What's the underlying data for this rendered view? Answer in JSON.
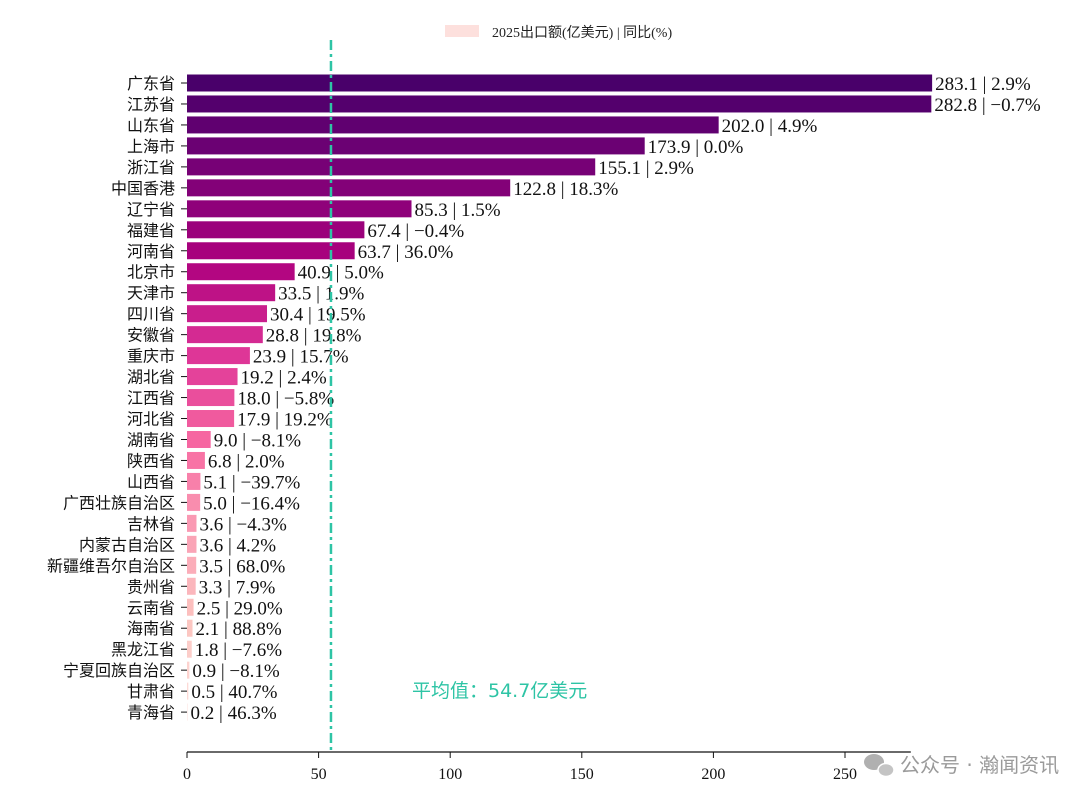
{
  "chart_data": {
    "type": "bar",
    "orientation": "horizontal",
    "legend": {
      "label": "2025出口额(亿美元) | 同比(%)",
      "position": "top-center",
      "swatch_color": "#fde0dd"
    },
    "categories": [
      "广东省",
      "江苏省",
      "山东省",
      "上海市",
      "浙江省",
      "中国香港",
      "辽宁省",
      "福建省",
      "河南省",
      "北京市",
      "天津市",
      "四川省",
      "安徽省",
      "重庆市",
      "湖北省",
      "江西省",
      "河北省",
      "湖南省",
      "陕西省",
      "山西省",
      "广西壮族自治区",
      "吉林省",
      "内蒙古自治区",
      "新疆维吾尔自治区",
      "贵州省",
      "云南省",
      "海南省",
      "黑龙江省",
      "宁夏回族自治区",
      "甘肃省",
      "青海省"
    ],
    "values": [
      283.1,
      282.8,
      202.0,
      173.9,
      155.1,
      122.8,
      85.3,
      67.4,
      63.7,
      40.9,
      33.5,
      30.4,
      28.8,
      23.9,
      19.2,
      18.0,
      17.9,
      9.0,
      6.8,
      5.1,
      5.0,
      3.6,
      3.6,
      3.5,
      3.3,
      2.5,
      2.1,
      1.8,
      0.9,
      0.5,
      0.2
    ],
    "yoy": [
      "2.9%",
      "−0.7%",
      "4.9%",
      "0.0%",
      "2.9%",
      "18.3%",
      "1.5%",
      "−0.4%",
      "36.0%",
      "5.0%",
      "1.9%",
      "19.5%",
      "19.8%",
      "15.7%",
      "2.4%",
      "−5.8%",
      "19.2%",
      "−8.1%",
      "2.0%",
      "−39.7%",
      "−16.4%",
      "−4.3%",
      "4.2%",
      "68.0%",
      "7.9%",
      "29.0%",
      "88.8%",
      "−7.6%",
      "−8.1%",
      "40.7%",
      "46.3%"
    ],
    "xlim": [
      0,
      275
    ],
    "xticks": [
      "0",
      "50",
      "100",
      "150",
      "200",
      "250"
    ],
    "mean_value": 54.7,
    "mean_label": "平均值：54.7亿美元",
    "mean_color": "#2ec4a5",
    "colormap": [
      "#49006a",
      "#7a0177",
      "#ae017e",
      "#dd3497",
      "#f768a1",
      "#fa9fb5",
      "#fcc5c0",
      "#fde0dd"
    ],
    "grid": false
  },
  "watermark": {
    "text": "公众号 · 瀚闻资讯",
    "icon": "wechat-icon"
  }
}
